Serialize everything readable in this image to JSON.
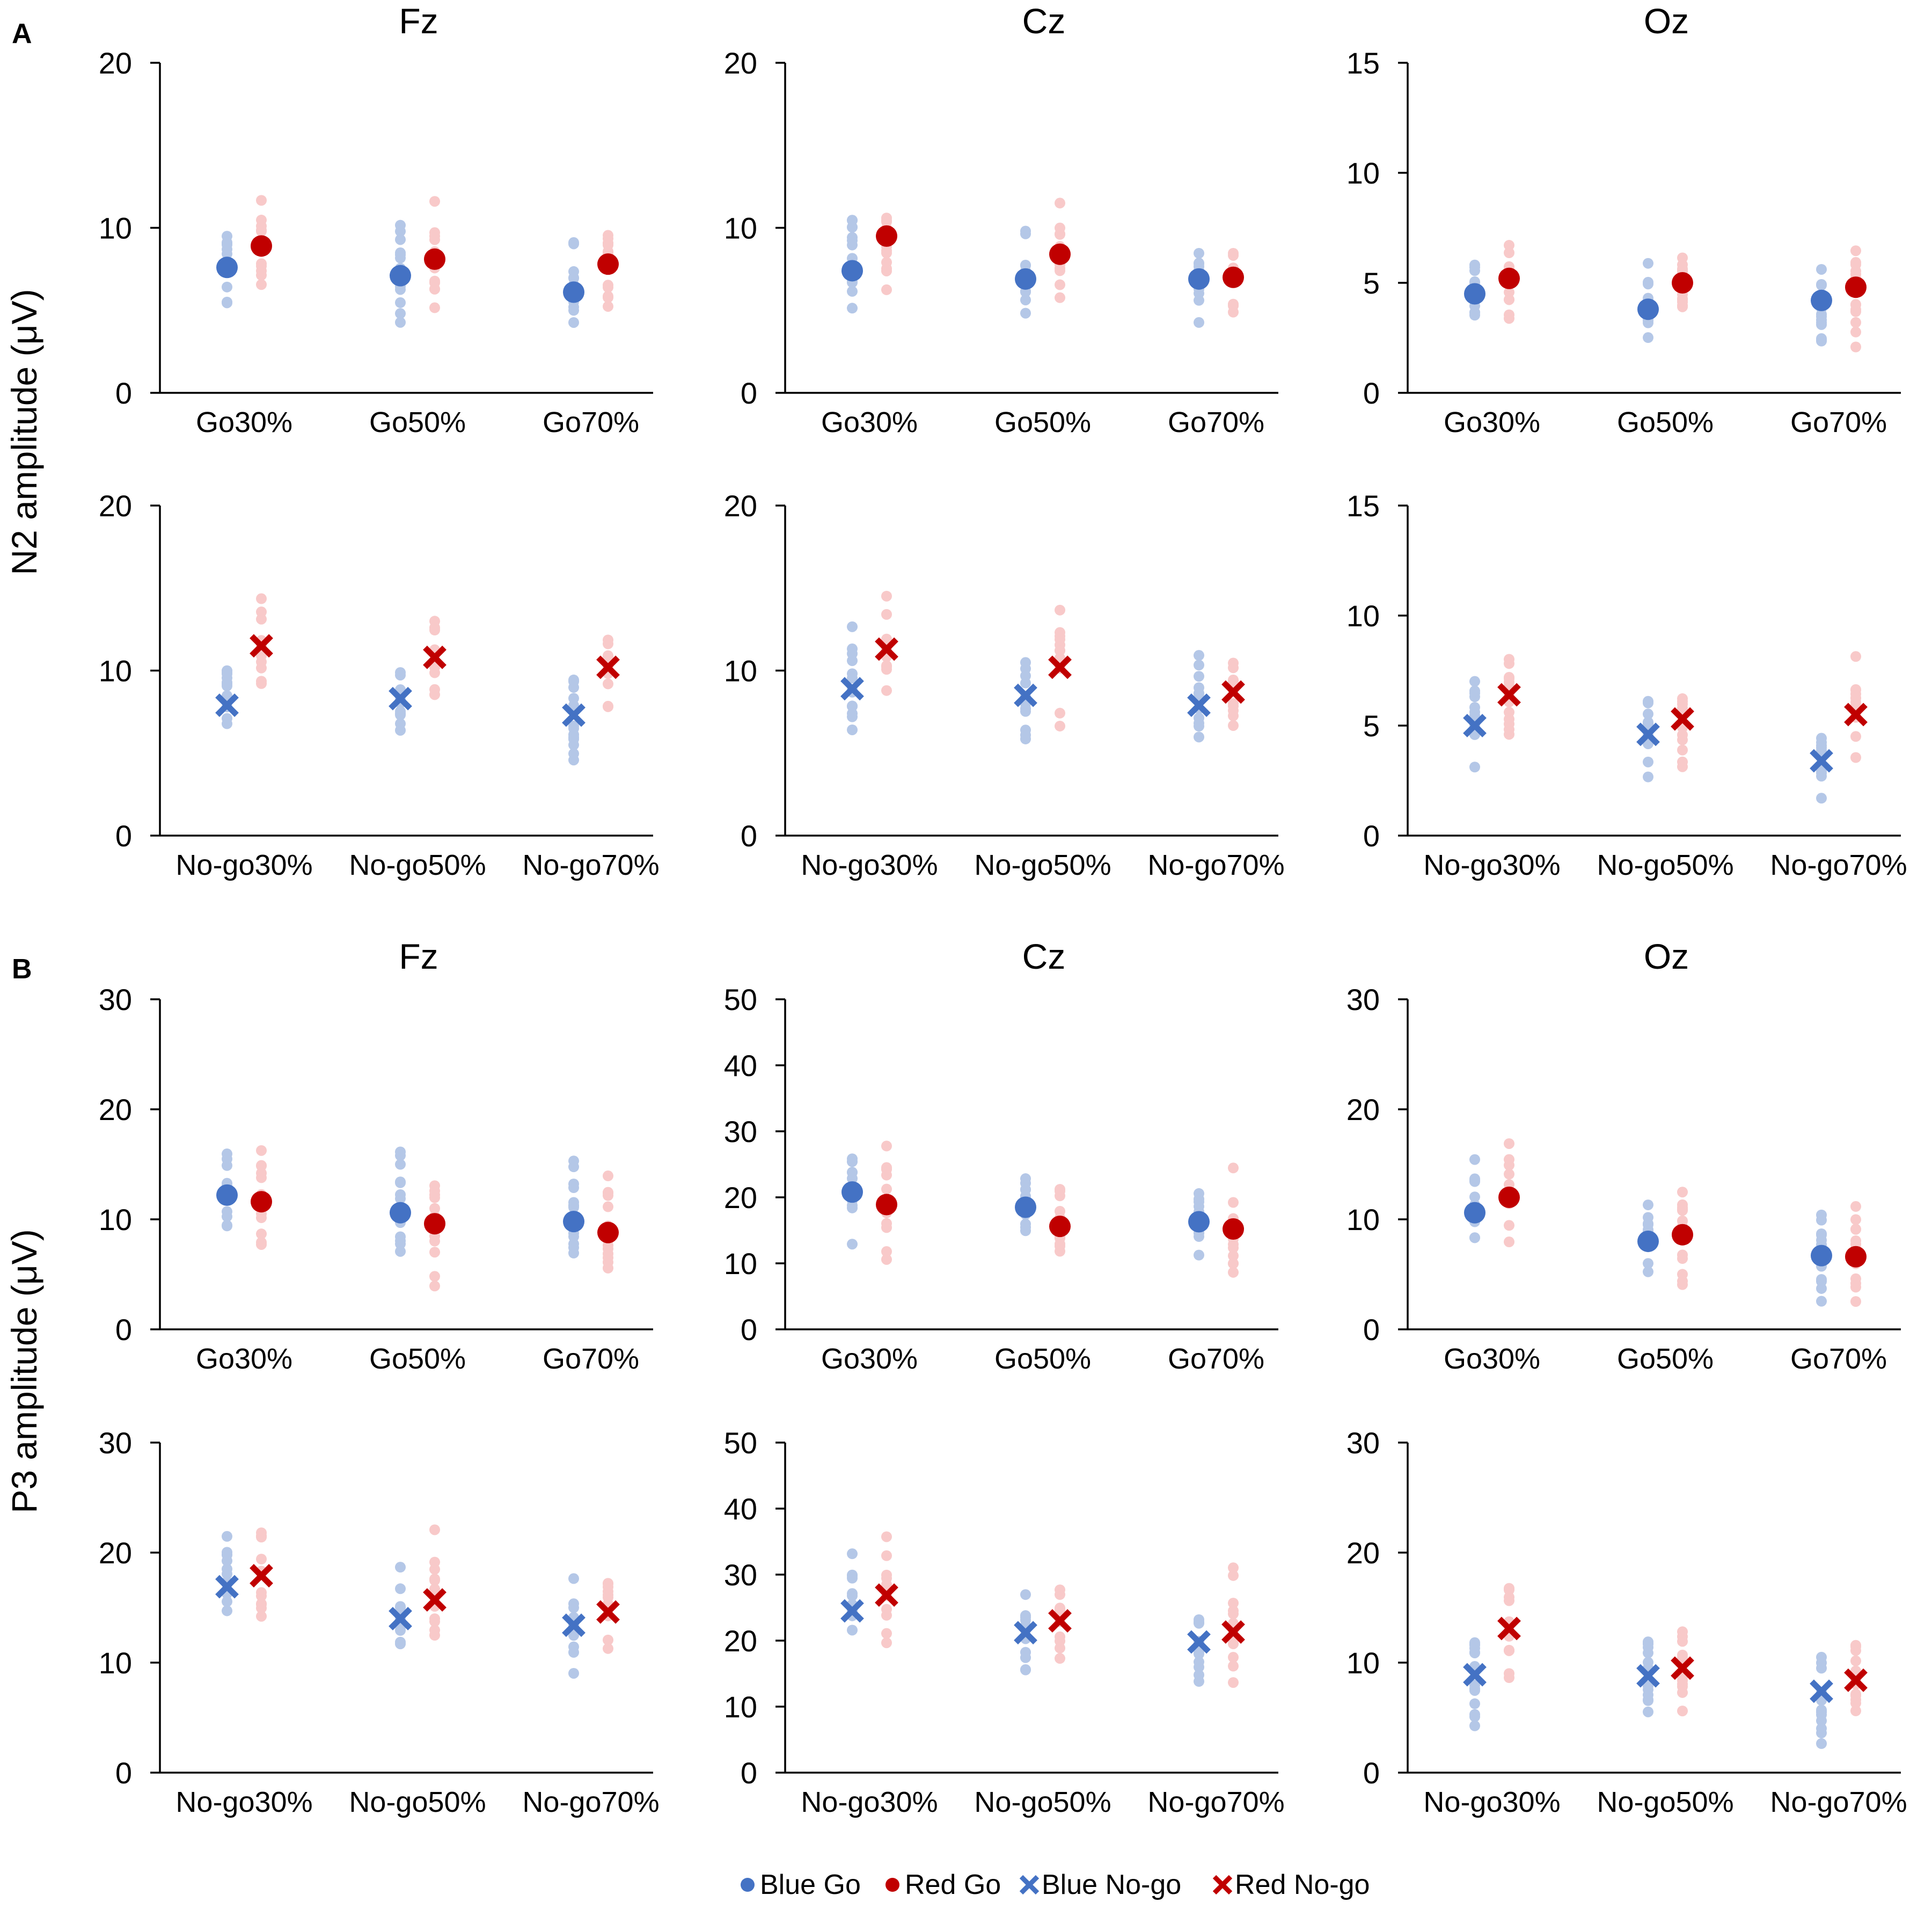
{
  "figure": {
    "panel_labels": [
      "A",
      "B"
    ],
    "y_labels": [
      "N2 amplitude (μV)",
      "P3 amplitude (μV)"
    ]
  },
  "legend": [
    {
      "marker": "dot",
      "color": "#4472C4",
      "label": "Blue Go"
    },
    {
      "marker": "dot",
      "color": "#C00000",
      "label": "Red Go"
    },
    {
      "marker": "cross",
      "color": "#4472C4",
      "label": "Blue No-go"
    },
    {
      "marker": "cross",
      "color": "#C00000",
      "label": "Red No-go"
    }
  ],
  "colors": {
    "blue_mean": "#4472C4",
    "red_mean": "#C00000",
    "blue_individual": "#B4C7E7",
    "red_individual": "#F8C9C9"
  },
  "chart_data": [
    {
      "type": "scatter",
      "panel": "A",
      "title": "Fz",
      "trial": "Go",
      "ylim": [
        0,
        20
      ],
      "yticks": [
        0,
        10,
        20
      ],
      "categories": [
        "Go30%",
        "Go50%",
        "Go70%"
      ],
      "series": [
        {
          "name": "Blue Go",
          "means": [
            7.6,
            7.1,
            6.1
          ]
        },
        {
          "name": "Red Go",
          "means": [
            8.9,
            8.1,
            7.8
          ]
        }
      ]
    },
    {
      "type": "scatter",
      "panel": "A",
      "title": "Cz",
      "trial": "Go",
      "ylim": [
        0,
        20
      ],
      "yticks": [
        0,
        10,
        20
      ],
      "categories": [
        "Go30%",
        "Go50%",
        "Go70%"
      ],
      "series": [
        {
          "name": "Blue Go",
          "means": [
            7.4,
            6.9,
            6.9
          ]
        },
        {
          "name": "Red Go",
          "means": [
            9.5,
            8.4,
            7.0
          ]
        }
      ]
    },
    {
      "type": "scatter",
      "panel": "A",
      "title": "Oz",
      "trial": "Go",
      "ylim": [
        0,
        15
      ],
      "yticks": [
        0,
        5,
        10,
        15
      ],
      "categories": [
        "Go30%",
        "Go50%",
        "Go70%"
      ],
      "series": [
        {
          "name": "Blue Go",
          "means": [
            4.5,
            3.8,
            4.2
          ]
        },
        {
          "name": "Red Go",
          "means": [
            5.2,
            5.0,
            4.8
          ]
        }
      ]
    },
    {
      "type": "scatter",
      "panel": "A",
      "title": "",
      "trial": "No-go",
      "ylim": [
        0,
        20
      ],
      "yticks": [
        0,
        10,
        20
      ],
      "categories": [
        "No-go30%",
        "No-go50%",
        "No-go70%"
      ],
      "series": [
        {
          "name": "Blue No-go",
          "means": [
            7.9,
            8.3,
            7.3
          ]
        },
        {
          "name": "Red No-go",
          "means": [
            11.5,
            10.8,
            10.2
          ]
        }
      ]
    },
    {
      "type": "scatter",
      "panel": "A",
      "title": "",
      "trial": "No-go",
      "ylim": [
        0,
        20
      ],
      "yticks": [
        0,
        10,
        20
      ],
      "categories": [
        "No-go30%",
        "No-go50%",
        "No-go70%"
      ],
      "series": [
        {
          "name": "Blue No-go",
          "means": [
            8.9,
            8.5,
            7.9
          ]
        },
        {
          "name": "Red No-go",
          "means": [
            11.3,
            10.2,
            8.7
          ]
        }
      ]
    },
    {
      "type": "scatter",
      "panel": "A",
      "title": "",
      "trial": "No-go",
      "ylim": [
        0,
        15
      ],
      "yticks": [
        0,
        5,
        10,
        15
      ],
      "categories": [
        "No-go30%",
        "No-go50%",
        "No-go70%"
      ],
      "series": [
        {
          "name": "Blue No-go",
          "means": [
            5.0,
            4.6,
            3.4
          ]
        },
        {
          "name": "Red No-go",
          "means": [
            6.4,
            5.3,
            5.5
          ]
        }
      ]
    },
    {
      "type": "scatter",
      "panel": "B",
      "title": "Fz",
      "trial": "Go",
      "ylim": [
        0,
        30
      ],
      "yticks": [
        0,
        10,
        20,
        30
      ],
      "categories": [
        "Go30%",
        "Go50%",
        "Go70%"
      ],
      "series": [
        {
          "name": "Blue Go",
          "means": [
            12.2,
            10.6,
            9.8
          ]
        },
        {
          "name": "Red Go",
          "means": [
            11.6,
            9.6,
            8.8
          ]
        }
      ]
    },
    {
      "type": "scatter",
      "panel": "B",
      "title": "Cz",
      "trial": "Go",
      "ylim": [
        0,
        50
      ],
      "yticks": [
        0,
        10,
        20,
        30,
        40,
        50
      ],
      "categories": [
        "Go30%",
        "Go50%",
        "Go70%"
      ],
      "series": [
        {
          "name": "Blue Go",
          "means": [
            20.8,
            18.5,
            16.3
          ]
        },
        {
          "name": "Red Go",
          "means": [
            18.9,
            15.6,
            15.2
          ]
        }
      ]
    },
    {
      "type": "scatter",
      "panel": "B",
      "title": "Oz",
      "trial": "Go",
      "ylim": [
        0,
        30
      ],
      "yticks": [
        0,
        10,
        20,
        30
      ],
      "categories": [
        "Go30%",
        "Go50%",
        "Go70%"
      ],
      "series": [
        {
          "name": "Blue Go",
          "means": [
            10.6,
            8.0,
            6.7
          ]
        },
        {
          "name": "Red Go",
          "means": [
            12.0,
            8.6,
            6.6
          ]
        }
      ]
    },
    {
      "type": "scatter",
      "panel": "B",
      "title": "",
      "trial": "No-go",
      "ylim": [
        0,
        30
      ],
      "yticks": [
        0,
        10,
        20,
        30
      ],
      "categories": [
        "No-go30%",
        "No-go50%",
        "No-go70%"
      ],
      "series": [
        {
          "name": "Blue No-go",
          "means": [
            16.9,
            14.0,
            13.4
          ]
        },
        {
          "name": "Red No-go",
          "means": [
            17.9,
            15.7,
            14.6
          ]
        }
      ]
    },
    {
      "type": "scatter",
      "panel": "B",
      "title": "",
      "trial": "No-go",
      "ylim": [
        0,
        50
      ],
      "yticks": [
        0,
        10,
        20,
        30,
        40,
        50
      ],
      "categories": [
        "No-go30%",
        "No-go50%",
        "No-go70%"
      ],
      "series": [
        {
          "name": "Blue No-go",
          "means": [
            24.5,
            21.2,
            19.8
          ]
        },
        {
          "name": "Red No-go",
          "means": [
            26.9,
            23.0,
            21.3
          ]
        }
      ]
    },
    {
      "type": "scatter",
      "panel": "B",
      "title": "",
      "trial": "No-go",
      "ylim": [
        0,
        30
      ],
      "yticks": [
        0,
        10,
        20,
        30
      ],
      "categories": [
        "No-go30%",
        "No-go50%",
        "No-go70%"
      ],
      "series": [
        {
          "name": "Blue No-go",
          "means": [
            8.9,
            8.8,
            7.4
          ]
        },
        {
          "name": "Red No-go",
          "means": [
            13.1,
            9.5,
            8.4
          ]
        }
      ]
    }
  ]
}
